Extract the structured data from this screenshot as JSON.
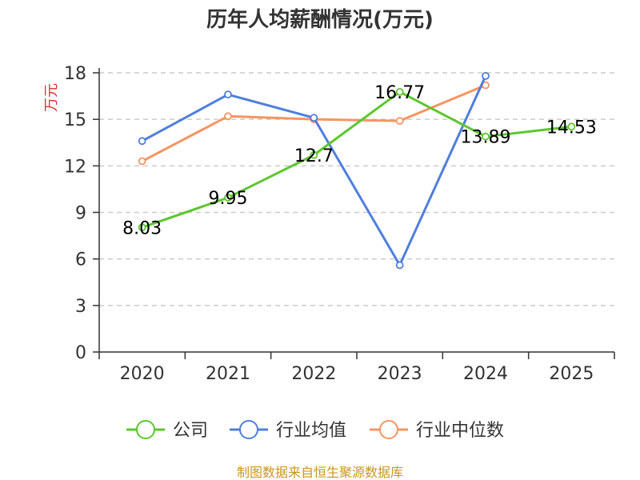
{
  "chart_data": {
    "type": "line",
    "title": "历年人均薪酬情况(万元)",
    "ylabel": "万元",
    "xlabel": "",
    "categories": [
      "2020",
      "2021",
      "2022",
      "2023",
      "2024",
      "2025"
    ],
    "ylim": [
      0,
      18
    ],
    "yticks": [
      0,
      3,
      6,
      9,
      12,
      15,
      18
    ],
    "grid": true,
    "legend_position": "bottom",
    "series": [
      {
        "name": "公司",
        "color": "#5cc72f",
        "values": [
          8.03,
          9.95,
          12.7,
          16.77,
          13.89,
          14.53
        ],
        "labels": [
          "8.03",
          "9.95",
          "12.7",
          "16.77",
          "13.89",
          "14.53"
        ]
      },
      {
        "name": "行业均值",
        "color": "#4f7fdc",
        "values": [
          13.6,
          16.6,
          15.1,
          5.6,
          17.8,
          null
        ]
      },
      {
        "name": "行业中位数",
        "color": "#f59562",
        "values": [
          12.3,
          15.2,
          15.0,
          14.9,
          17.2,
          null
        ]
      }
    ]
  },
  "footer": {
    "source": "制图数据来自恒生聚源数据库"
  }
}
